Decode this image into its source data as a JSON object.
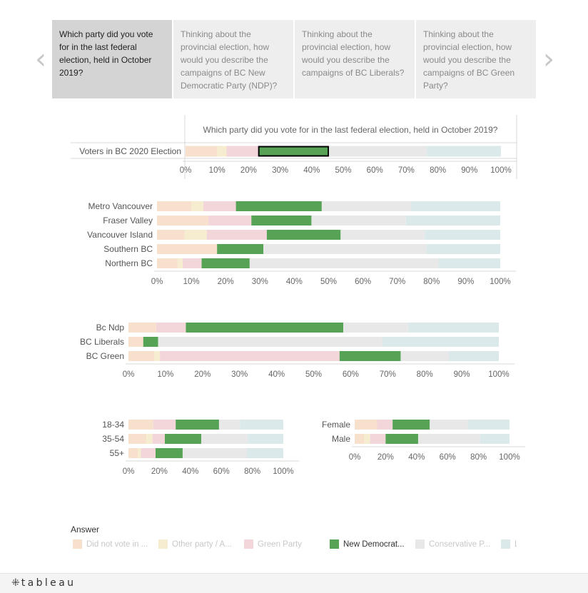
{
  "navigation": {
    "prev_glyph": "‹",
    "next_glyph": "›",
    "tabs": [
      {
        "label": "Which party did you vote for in the last federal election, held in October 2019?",
        "active": true
      },
      {
        "label": "Thinking about the provincial election, how would you describe the campaigns of BC New Democratic Party (NDP)?",
        "active": false
      },
      {
        "label": "Thinking about the provincial election, how would you describe the campaigns of BC Liberals?",
        "active": false
      },
      {
        "label": "Thinking about the provincial election, how would you describe the campaigns of BC Green Party?",
        "active": false
      }
    ]
  },
  "colors": {
    "did_not_vote": "#f7e0cc",
    "other_party": "#f6ecd0",
    "green_party": "#f2d6da",
    "ndp": "#57a356",
    "conservative": "#e8e8e8",
    "liberal": "#dce9ea",
    "highlight_border": "#000000"
  },
  "chart_data": [
    {
      "type": "bar",
      "orientation": "horizontal",
      "stacked": true,
      "title": "Which party did you vote for in the last federal election, held in October 2019?",
      "categories": [
        "Voters in BC 2020 Election"
      ],
      "series": [
        {
          "name": "Did not vote in ...",
          "values": [
            10
          ]
        },
        {
          "name": "Other party / A...",
          "values": [
            3
          ]
        },
        {
          "name": "Green Party",
          "values": [
            10
          ]
        },
        {
          "name": "New Democrat...",
          "values": [
            22.5
          ]
        },
        {
          "name": "Conservative P...",
          "values": [
            31
          ]
        },
        {
          "name": "L...",
          "values": [
            23.5
          ]
        }
      ],
      "highlighted_series": "New Democrat...",
      "xlim": [
        0,
        100
      ],
      "xticks": [
        "0%",
        "10%",
        "20%",
        "30%",
        "40%",
        "50%",
        "60%",
        "70%",
        "80%",
        "90%",
        "100%"
      ]
    },
    {
      "type": "bar",
      "orientation": "horizontal",
      "stacked": true,
      "categories": [
        "Metro Vancouver",
        "Fraser Valley",
        "Vancouver Island",
        "Southern BC",
        "Northern BC"
      ],
      "series": [
        {
          "name": "Did not vote in ...",
          "values": [
            10,
            15,
            8,
            17.5,
            6
          ]
        },
        {
          "name": "Other party / A...",
          "values": [
            3.5,
            0,
            6.5,
            0,
            1.5
          ]
        },
        {
          "name": "Green Party",
          "values": [
            9.5,
            12.5,
            17.5,
            0,
            5.5
          ]
        },
        {
          "name": "New Democrat...",
          "values": [
            25,
            17.5,
            21.5,
            13.5,
            14
          ]
        },
        {
          "name": "Conservative P...",
          "values": [
            26,
            27.5,
            24.5,
            47.5,
            55
          ]
        },
        {
          "name": "L...",
          "values": [
            26,
            27.5,
            22,
            21.5,
            18
          ]
        }
      ],
      "xlim": [
        0,
        100
      ],
      "xticks": [
        "0%",
        "10%",
        "20%",
        "30%",
        "40%",
        "50%",
        "60%",
        "70%",
        "80%",
        "90%",
        "100%"
      ]
    },
    {
      "type": "bar",
      "orientation": "horizontal",
      "stacked": true,
      "categories": [
        "Bc Ndp",
        "BC Liberals",
        "BC Green"
      ],
      "series": [
        {
          "name": "Did not vote in ...",
          "values": [
            7.5,
            4,
            7
          ]
        },
        {
          "name": "Other party / A...",
          "values": [
            0,
            0,
            1.5
          ]
        },
        {
          "name": "Green Party",
          "values": [
            8,
            0,
            48.5
          ]
        },
        {
          "name": "New Democrat...",
          "values": [
            42.5,
            4,
            16.5
          ]
        },
        {
          "name": "Conservative P...",
          "values": [
            17.5,
            60.5,
            13
          ]
        },
        {
          "name": "L...",
          "values": [
            24.5,
            31.5,
            13.5
          ]
        }
      ],
      "xlim": [
        0,
        100
      ],
      "xticks": [
        "0%",
        "10%",
        "20%",
        "30%",
        "40%",
        "50%",
        "60%",
        "70%",
        "80%",
        "90%",
        "100%"
      ]
    },
    {
      "type": "bar",
      "orientation": "horizontal",
      "stacked": true,
      "categories": [
        "18-34",
        "35-54",
        "55+"
      ],
      "series": [
        {
          "name": "Did not vote in ...",
          "values": [
            16,
            11.5,
            6
          ]
        },
        {
          "name": "Other party / A...",
          "values": [
            0,
            4,
            2
          ]
        },
        {
          "name": "Green Party",
          "values": [
            14.5,
            8,
            9.5
          ]
        },
        {
          "name": "New Democrat...",
          "values": [
            28,
            23.5,
            17.5
          ]
        },
        {
          "name": "Conservative P...",
          "values": [
            13.5,
            30,
            41.5
          ]
        },
        {
          "name": "L...",
          "values": [
            28,
            23,
            23.5
          ]
        }
      ],
      "xlim": [
        0,
        100
      ],
      "xticks": [
        "0%",
        "20%",
        "40%",
        "60%",
        "80%",
        "100%"
      ]
    },
    {
      "type": "bar",
      "orientation": "horizontal",
      "stacked": true,
      "categories": [
        "Female",
        "Male"
      ],
      "series": [
        {
          "name": "Did not vote in ...",
          "values": [
            14.5,
            6
          ]
        },
        {
          "name": "Other party / A...",
          "values": [
            0,
            4
          ]
        },
        {
          "name": "Green Party",
          "values": [
            10,
            10
          ]
        },
        {
          "name": "New Democrat...",
          "values": [
            24,
            21
          ]
        },
        {
          "name": "Conservative P...",
          "values": [
            24.5,
            40
          ]
        },
        {
          "name": "L...",
          "values": [
            27,
            19
          ]
        }
      ],
      "xlim": [
        0,
        100
      ],
      "xticks": [
        "0%",
        "20%",
        "40%",
        "60%",
        "80%",
        "100%"
      ]
    }
  ],
  "legend": {
    "title": "Answer",
    "items": [
      {
        "label": "Did not vote in ...",
        "color": "#f7e0cc",
        "active": false
      },
      {
        "label": "Other party / A...",
        "color": "#f6ecd0",
        "active": false
      },
      {
        "label": "Green Party",
        "color": "#f2d6da",
        "active": false
      },
      {
        "label": "New Democrat...",
        "color": "#57a356",
        "active": true
      },
      {
        "label": "Conservative P...",
        "color": "#e8e8e8",
        "active": false
      },
      {
        "label": "L...",
        "color": "#dce9ea",
        "active": false
      }
    ]
  },
  "footer": {
    "logo_mark": "⁜",
    "logo_text": "tableau"
  }
}
